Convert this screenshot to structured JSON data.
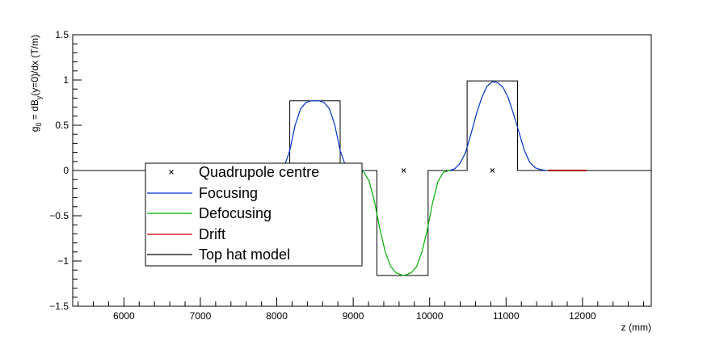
{
  "chart_data": {
    "type": "line",
    "xlabel": "z (mm)",
    "ylabel_parts": {
      "g": "g",
      "g_sub": "0",
      "mid": " = dB",
      "b_sub": "y",
      "tail": "(y=0)/dx  (T/m)"
    },
    "xlim": [
      5330,
      12900
    ],
    "ylim": [
      -1.5,
      1.5
    ],
    "xticks": [
      6000,
      7000,
      8000,
      9000,
      10000,
      11000,
      12000
    ],
    "yticks": [
      -1.5,
      -1,
      -0.5,
      0,
      0.5,
      1,
      1.5
    ],
    "ytick_labels": [
      "−1.5",
      "−1",
      "−0.5",
      "0",
      "0.5",
      "1",
      "1.5"
    ],
    "grid": false,
    "legend_placement": "lower-left",
    "legend": [
      {
        "label": "Quadrupole centre",
        "style": "marker",
        "color": "#000000"
      },
      {
        "label": "Focusing",
        "style": "line",
        "color": "#0033cc"
      },
      {
        "label": "Defocusing",
        "style": "line",
        "color": "#00b000"
      },
      {
        "label": "Drift",
        "style": "line",
        "color": "#cc0000"
      },
      {
        "label": "Top hat model",
        "style": "line",
        "color": "#000000"
      }
    ],
    "quadrupole_centres": [
      {
        "x": 8500,
        "y": 0
      },
      {
        "x": 9660,
        "y": 0
      },
      {
        "x": 10820,
        "y": 0
      }
    ],
    "top_hat_model": {
      "x": [
        5330,
        8170,
        8170,
        8830,
        8830,
        9310,
        9310,
        9980,
        9980,
        10490,
        10490,
        11150,
        11150,
        12900
      ],
      "y": [
        0,
        0,
        0.77,
        0.77,
        0,
        0,
        -1.16,
        -1.16,
        0,
        0,
        0.99,
        0.99,
        0,
        0
      ]
    },
    "focusing_series": [
      {
        "name": "Focusing",
        "x": [
          8030,
          8100,
          8170,
          8240,
          8310,
          8380,
          8440,
          8500,
          8560,
          8620,
          8690,
          8760,
          8830,
          8900,
          8970
        ],
        "y": [
          0.0,
          0.05,
          0.22,
          0.5,
          0.68,
          0.75,
          0.77,
          0.77,
          0.77,
          0.75,
          0.68,
          0.5,
          0.22,
          0.05,
          0.0
        ]
      },
      {
        "name": "Focusing",
        "x": [
          10260,
          10330,
          10400,
          10470,
          10540,
          10610,
          10680,
          10750,
          10820,
          10890,
          10960,
          11030,
          11100,
          11170,
          11240,
          11310,
          11380,
          11450,
          11530
        ],
        "y": [
          0.0,
          0.02,
          0.08,
          0.2,
          0.4,
          0.62,
          0.8,
          0.93,
          0.98,
          0.97,
          0.92,
          0.8,
          0.62,
          0.42,
          0.22,
          0.09,
          0.03,
          0.01,
          0.0
        ]
      }
    ],
    "defocusing_series": {
      "name": "Defocusing",
      "x": [
        9070,
        9140,
        9210,
        9280,
        9350,
        9420,
        9490,
        9560,
        9620,
        9660,
        9700,
        9760,
        9830,
        9900,
        9970,
        10040,
        10110,
        10180,
        10260
      ],
      "y": [
        0.0,
        -0.02,
        -0.12,
        -0.35,
        -0.65,
        -0.9,
        -1.06,
        -1.13,
        -1.15,
        -1.16,
        -1.15,
        -1.13,
        -1.06,
        -0.9,
        -0.65,
        -0.35,
        -0.12,
        -0.02,
        0.0
      ]
    },
    "drift_series": [
      {
        "name": "Drift",
        "x": [
          5330,
          8030
        ],
        "y": [
          0,
          0
        ]
      },
      {
        "name": "Drift",
        "x": [
          11530,
          12900
        ],
        "y": [
          0,
          0
        ]
      }
    ],
    "drift_highlight": {
      "x": [
        11550,
        12050
      ],
      "y": [
        0,
        0
      ]
    }
  }
}
